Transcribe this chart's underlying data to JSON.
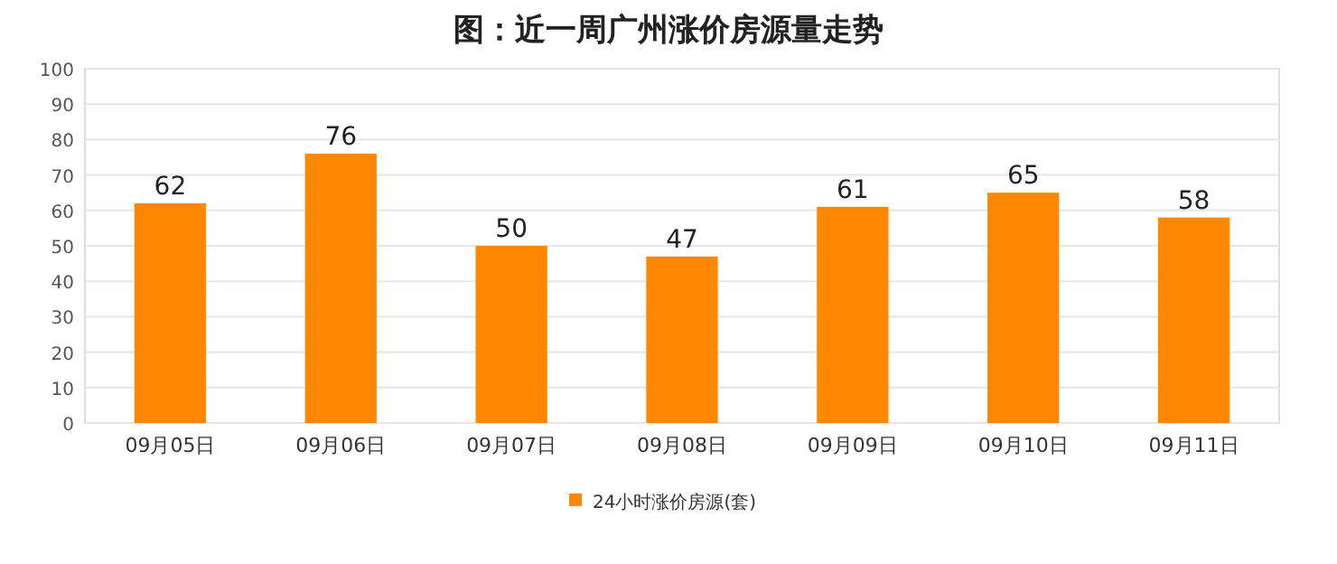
{
  "chart_data": {
    "type": "bar",
    "title": "图：近一周广州涨价房源量走势",
    "categories": [
      "09月05日",
      "09月06日",
      "09月07日",
      "09月08日",
      "09月09日",
      "09月10日",
      "09月11日"
    ],
    "series": [
      {
        "name": "24小时涨价房源(套)",
        "color": "#ff8800",
        "values": [
          62,
          76,
          50,
          47,
          61,
          65,
          58
        ]
      }
    ],
    "ylim": [
      0,
      100
    ],
    "yticks": [
      0,
      10,
      20,
      30,
      40,
      50,
      60,
      70,
      80,
      90,
      100
    ],
    "grid": "y",
    "legend": "bottom",
    "data_labels": true
  }
}
